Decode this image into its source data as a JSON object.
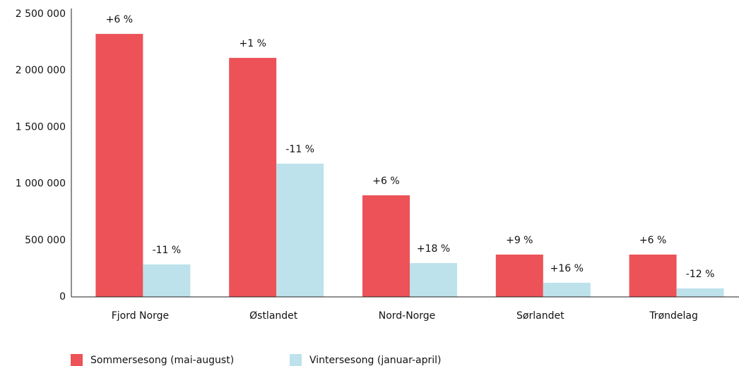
{
  "chart_data": {
    "type": "bar",
    "categories": [
      "Fjord Norge",
      "Østlandet",
      "Nord-Norge",
      "Sørlandet",
      "Trøndelag"
    ],
    "series": [
      {
        "name": "Sommersesong (mai-august)",
        "color": "#ec5257",
        "values": [
          2325000,
          2113000,
          898000,
          374000,
          374000
        ],
        "change_labels": [
          "+6 %",
          "+1 %",
          "+6 %",
          "+9 %",
          "+6 %"
        ]
      },
      {
        "name": "Vintersesong (januar-april)",
        "color": "#bde2ec",
        "values": [
          287000,
          1178000,
          299000,
          125000,
          75000
        ],
        "change_labels": [
          "-11 %",
          "-11 %",
          "+18 %",
          "+16 %",
          "-12 %"
        ]
      }
    ],
    "ylim": [
      0,
      2500000
    ],
    "yticks": [
      0,
      {
        "value": 500000,
        "label": "500 000"
      },
      {
        "value": 1000000,
        "label": "1 000 000"
      },
      {
        "value": 1500000,
        "label": "1 500 000"
      },
      {
        "value": 2000000,
        "label": "2 000 000"
      },
      {
        "value": 2500000,
        "label": "2 500 000"
      }
    ],
    "grid": false
  }
}
